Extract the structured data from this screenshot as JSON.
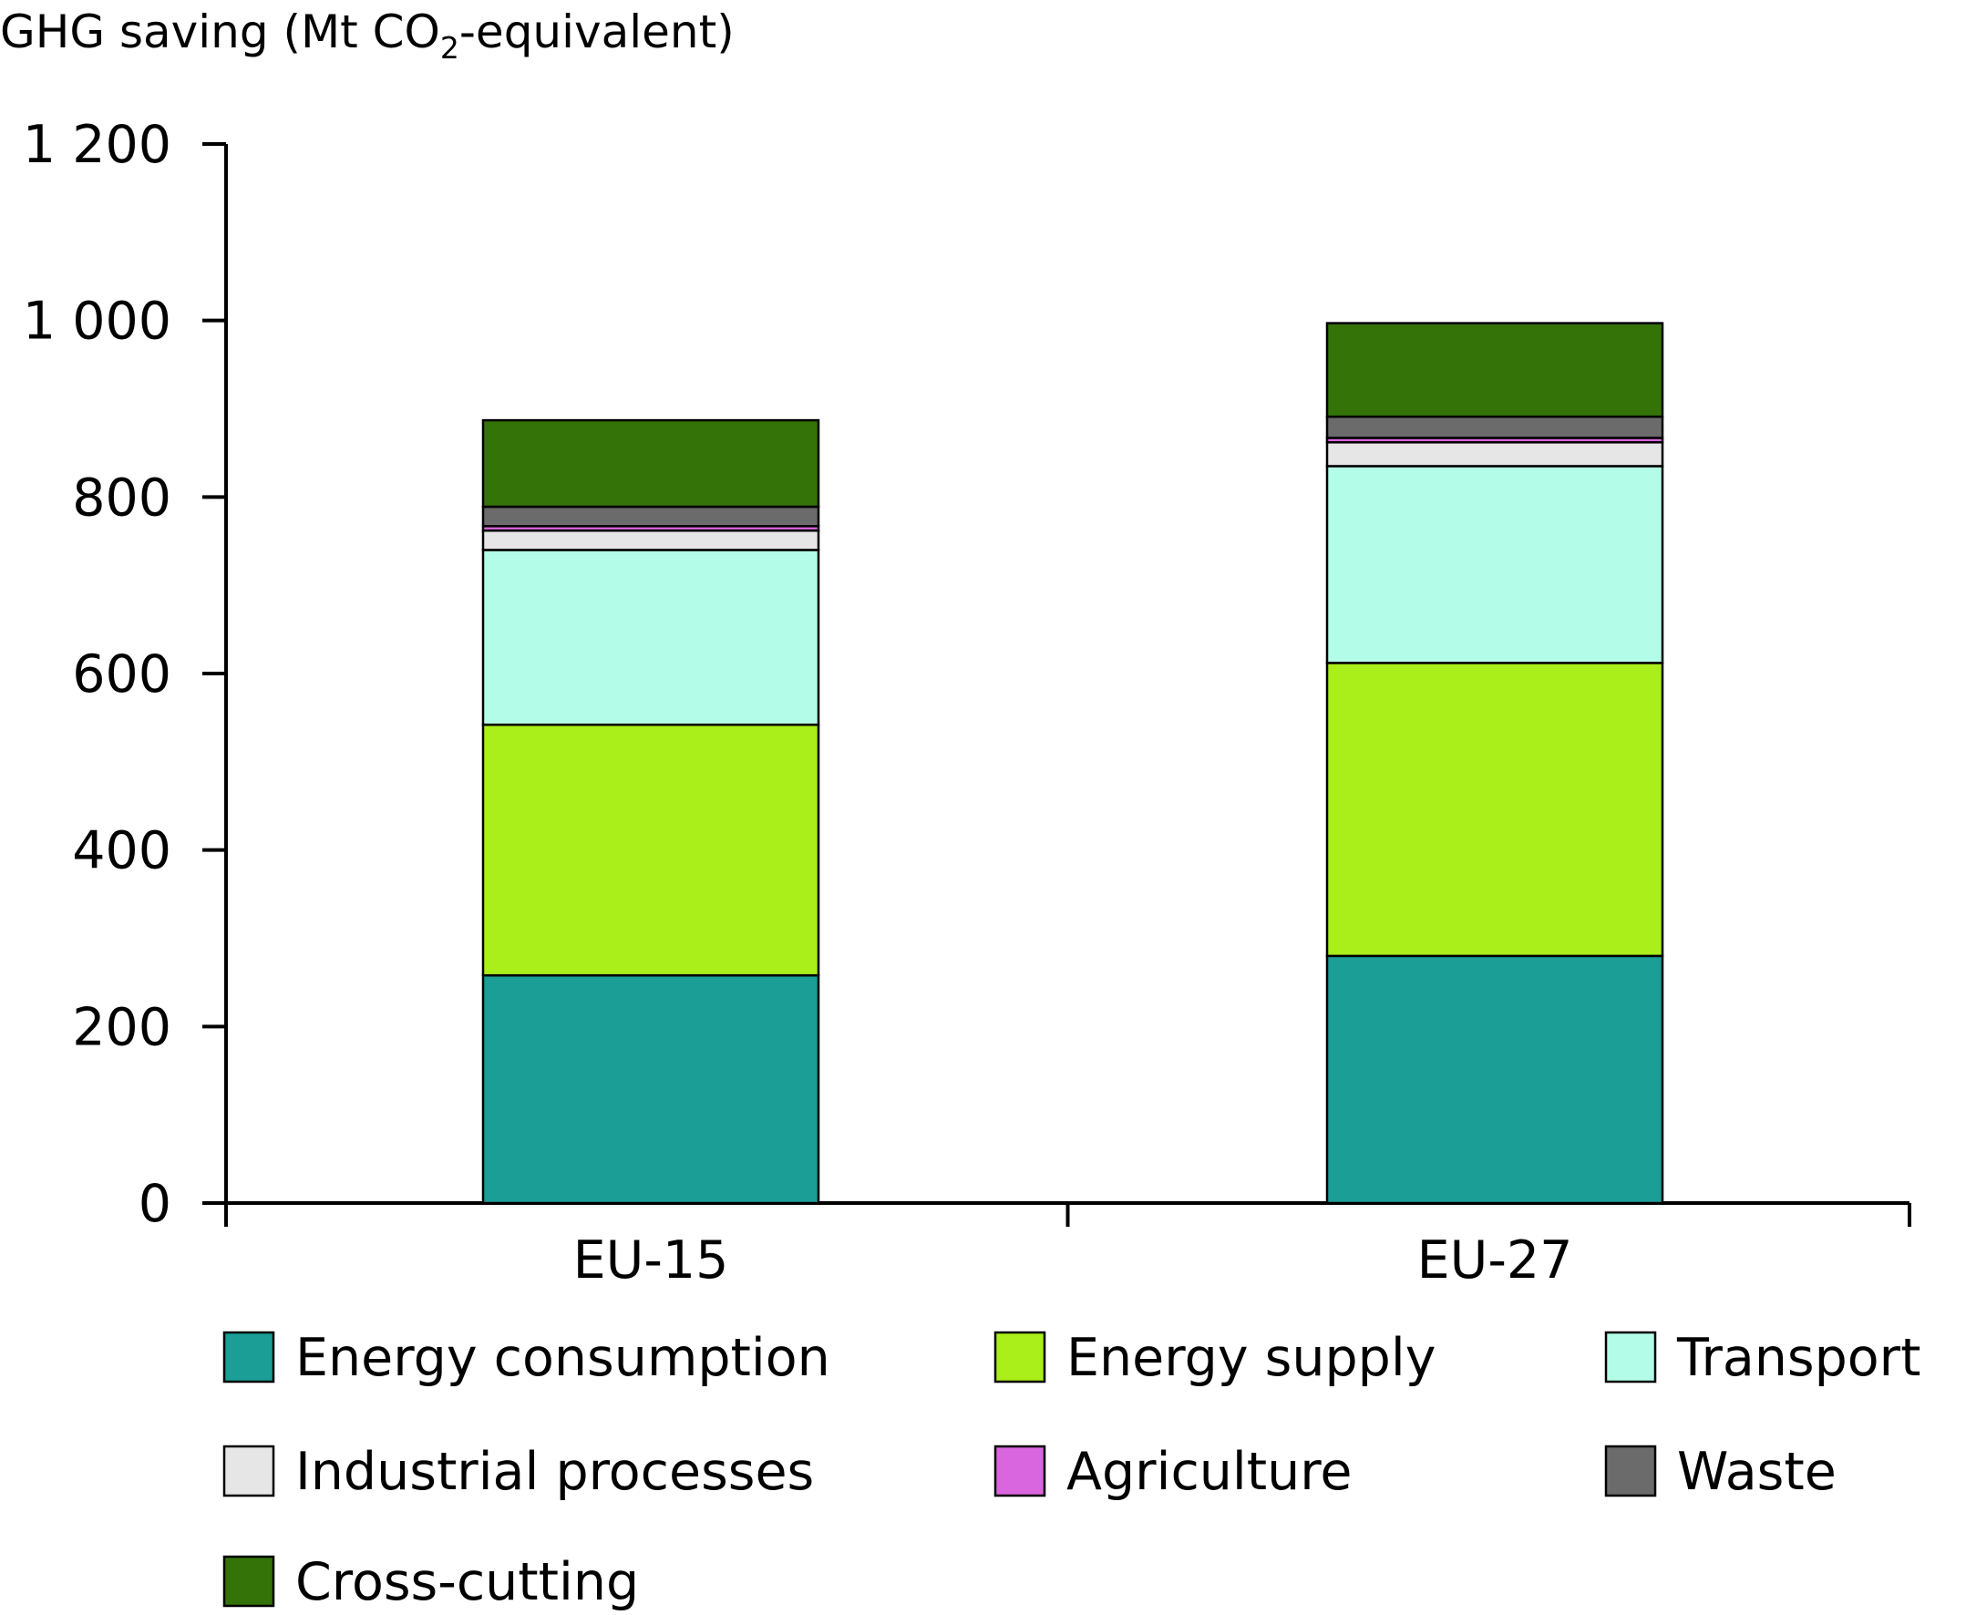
{
  "chart_data": {
    "type": "bar",
    "stacked": true,
    "ylabel": {
      "prefix": "GHG saving (Mt CO",
      "subscript": "2",
      "suffix": "-equivalent)"
    },
    "ylim": [
      0,
      1200
    ],
    "yticks": [
      0,
      200,
      400,
      600,
      800,
      1000,
      1200
    ],
    "ytick_labels": [
      "0",
      "200",
      "400",
      "600",
      "800",
      "1 000",
      "1 200"
    ],
    "categories": [
      "EU-15",
      "EU-27"
    ],
    "series": [
      {
        "name": "Energy consumption",
        "color": "#1a9e96",
        "values": [
          258,
          280
        ]
      },
      {
        "name": "Energy supply",
        "color": "#aaee1a",
        "values": [
          284,
          332
        ]
      },
      {
        "name": "Transport",
        "color": "#b3fde8",
        "values": [
          198,
          223
        ]
      },
      {
        "name": "Industrial processes",
        "color": "#e6e6e6",
        "values": [
          22,
          27
        ]
      },
      {
        "name": "Agriculture",
        "color": "#d966de",
        "values": [
          5,
          5
        ]
      },
      {
        "name": "Waste",
        "color": "#6b6b6b",
        "values": [
          22,
          24
        ]
      },
      {
        "name": "Cross-cutting",
        "color": "#337308",
        "values": [
          98,
          106
        ]
      }
    ],
    "grid": false,
    "legend": "bottom"
  }
}
